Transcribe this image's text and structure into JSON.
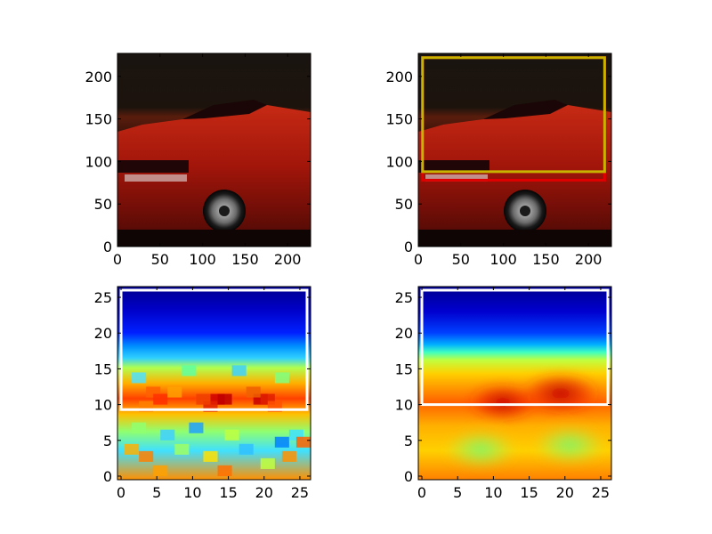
{
  "figure": {
    "background": "#ffffff"
  },
  "chart_data": [
    {
      "type": "image",
      "content": "red-sports-car-photo",
      "xticks": [
        "0",
        "50",
        "100",
        "150",
        "200"
      ],
      "yticks": [
        "0",
        "50",
        "100",
        "150",
        "200"
      ],
      "xlim": [
        0,
        227
      ],
      "ylim": [
        227,
        0
      ],
      "boxes": []
    },
    {
      "type": "image",
      "content": "red-sports-car-photo",
      "xticks": [
        "0",
        "50",
        "100",
        "150",
        "200"
      ],
      "yticks": [
        "0",
        "50",
        "100",
        "150",
        "200"
      ],
      "xlim": [
        0,
        227
      ],
      "ylim": [
        227,
        0
      ],
      "boxes": [
        {
          "x0": 5,
          "y0": 78,
          "x1": 219,
          "y1": 222,
          "color": "#e00000"
        },
        {
          "x0": 5,
          "y0": 88,
          "x1": 219,
          "y1": 222,
          "color": "#c8b400"
        }
      ]
    },
    {
      "type": "heatmap",
      "colormap": "jet",
      "style": "blocky",
      "xticks": [
        "0",
        "5",
        "10",
        "15",
        "20",
        "25"
      ],
      "yticks": [
        "0",
        "5",
        "10",
        "15",
        "20",
        "25"
      ],
      "xlim": [
        -0.5,
        26.5
      ],
      "ylim": [
        26.5,
        -0.5
      ],
      "boxes": [
        {
          "x0": 0,
          "y0": 9.3,
          "x1": 26,
          "y1": 26,
          "color": "#ffffff"
        }
      ]
    },
    {
      "type": "heatmap",
      "colormap": "jet",
      "style": "smooth",
      "xticks": [
        "0",
        "5",
        "10",
        "15",
        "20",
        "25"
      ],
      "yticks": [
        "0",
        "5",
        "10",
        "15",
        "20",
        "25"
      ],
      "xlim": [
        -0.5,
        26.5
      ],
      "ylim": [
        26.5,
        -0.5
      ],
      "boxes": [
        {
          "x0": 0,
          "y0": 10,
          "x1": 26,
          "y1": 26,
          "color": "#ffffff"
        }
      ]
    }
  ]
}
